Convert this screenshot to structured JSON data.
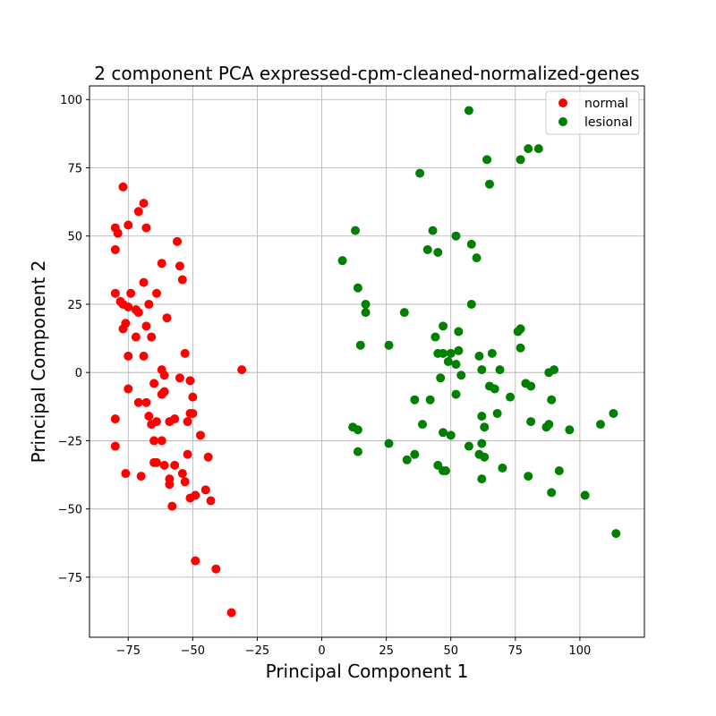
{
  "chart_data": {
    "type": "scatter",
    "title": "2 component PCA expressed-cpm-cleaned-normalized-genes",
    "xlabel": "Principal Component 1",
    "ylabel": "Principal Component 2",
    "xlim": [
      -90,
      125
    ],
    "ylim": [
      -97,
      105
    ],
    "xticks": [
      -75,
      -50,
      -25,
      0,
      25,
      50,
      75,
      100
    ],
    "yticks": [
      -75,
      -50,
      -25,
      0,
      25,
      50,
      75,
      100
    ],
    "xtick_labels": [
      "−75",
      "−50",
      "−25",
      "0",
      "25",
      "50",
      "75",
      "100"
    ],
    "ytick_labels": [
      "−75",
      "−50",
      "−25",
      "0",
      "25",
      "50",
      "75",
      "100"
    ],
    "grid": true,
    "legend_position": "top-right",
    "series": [
      {
        "name": "normal",
        "color": "#ff0000",
        "points": [
          [
            -77,
            68
          ],
          [
            -69,
            62
          ],
          [
            -80,
            53
          ],
          [
            -79,
            51
          ],
          [
            -75,
            54
          ],
          [
            -71,
            59
          ],
          [
            -68,
            53
          ],
          [
            -80,
            45
          ],
          [
            -56,
            48
          ],
          [
            -62,
            40
          ],
          [
            -55,
            39
          ],
          [
            -69,
            33
          ],
          [
            -74,
            29
          ],
          [
            -64,
            29
          ],
          [
            -80,
            29
          ],
          [
            -54,
            34
          ],
          [
            -78,
            26
          ],
          [
            -77,
            25
          ],
          [
            -67,
            25
          ],
          [
            -75,
            24
          ],
          [
            -72,
            23
          ],
          [
            -71,
            22
          ],
          [
            -60,
            20
          ],
          [
            -68,
            17
          ],
          [
            -76,
            18
          ],
          [
            -77,
            16
          ],
          [
            -72,
            13
          ],
          [
            -66,
            13
          ],
          [
            -75,
            6
          ],
          [
            -69,
            6
          ],
          [
            -53,
            7
          ],
          [
            -31,
            1
          ],
          [
            -62,
            1
          ],
          [
            -61,
            -1
          ],
          [
            -55,
            -2
          ],
          [
            -51,
            -3
          ],
          [
            -65,
            -4
          ],
          [
            -75,
            -6
          ],
          [
            -61,
            -7
          ],
          [
            -62,
            -8
          ],
          [
            -50,
            -9
          ],
          [
            -71,
            -11
          ],
          [
            -68,
            -11
          ],
          [
            -80,
            -17
          ],
          [
            -67,
            -16
          ],
          [
            -64,
            -18
          ],
          [
            -59,
            -18
          ],
          [
            -57,
            -17
          ],
          [
            -52,
            -18
          ],
          [
            -51,
            -15
          ],
          [
            -50,
            -15
          ],
          [
            -66,
            -19
          ],
          [
            -47,
            -23
          ],
          [
            -80,
            -27
          ],
          [
            -65,
            -25
          ],
          [
            -62,
            -25
          ],
          [
            -52,
            -30
          ],
          [
            -44,
            -31
          ],
          [
            -65,
            -33
          ],
          [
            -64,
            -33
          ],
          [
            -61,
            -34
          ],
          [
            -57,
            -34
          ],
          [
            -76,
            -37
          ],
          [
            -70,
            -38
          ],
          [
            -54,
            -37
          ],
          [
            -59,
            -39
          ],
          [
            -59,
            -41
          ],
          [
            -53,
            -40
          ],
          [
            -45,
            -43
          ],
          [
            -51,
            -46
          ],
          [
            -49,
            -45
          ],
          [
            -43,
            -47
          ],
          [
            -58,
            -49
          ],
          [
            -49,
            -69
          ],
          [
            -41,
            -72
          ],
          [
            -35,
            -88
          ]
        ]
      },
      {
        "name": "lesional",
        "color": "#008000",
        "points": [
          [
            57,
            96
          ],
          [
            64,
            78
          ],
          [
            77,
            78
          ],
          [
            80,
            82
          ],
          [
            84,
            82
          ],
          [
            38,
            73
          ],
          [
            65,
            69
          ],
          [
            13,
            52
          ],
          [
            43,
            52
          ],
          [
            52,
            50
          ],
          [
            58,
            47
          ],
          [
            41,
            45
          ],
          [
            45,
            44
          ],
          [
            60,
            42
          ],
          [
            8,
            41
          ],
          [
            14,
            31
          ],
          [
            17,
            25
          ],
          [
            17,
            22
          ],
          [
            58,
            25
          ],
          [
            32,
            22
          ],
          [
            47,
            17
          ],
          [
            53,
            15
          ],
          [
            77,
            16
          ],
          [
            76,
            15
          ],
          [
            15,
            10
          ],
          [
            26,
            10
          ],
          [
            44,
            13
          ],
          [
            77,
            9
          ],
          [
            47,
            7
          ],
          [
            45,
            7
          ],
          [
            53,
            8
          ],
          [
            50,
            7
          ],
          [
            49,
            4
          ],
          [
            52,
            3
          ],
          [
            66,
            7
          ],
          [
            62,
            1
          ],
          [
            69,
            1
          ],
          [
            61,
            6
          ],
          [
            88,
            0
          ],
          [
            90,
            1
          ],
          [
            54,
            -1
          ],
          [
            46,
            -2
          ],
          [
            65,
            -5
          ],
          [
            67,
            -6
          ],
          [
            79,
            -4
          ],
          [
            81,
            -5
          ],
          [
            52,
            -8
          ],
          [
            73,
            -9
          ],
          [
            42,
            -10
          ],
          [
            36,
            -10
          ],
          [
            89,
            -10
          ],
          [
            68,
            -15
          ],
          [
            62,
            -16
          ],
          [
            39,
            -19
          ],
          [
            81,
            -18
          ],
          [
            88,
            -19
          ],
          [
            87,
            -20
          ],
          [
            12,
            -20
          ],
          [
            14,
            -21
          ],
          [
            63,
            -20
          ],
          [
            96,
            -21
          ],
          [
            108,
            -19
          ],
          [
            113,
            -15
          ],
          [
            47,
            -22
          ],
          [
            50,
            -23
          ],
          [
            26,
            -26
          ],
          [
            57,
            -27
          ],
          [
            62,
            -26
          ],
          [
            14,
            -29
          ],
          [
            36,
            -30
          ],
          [
            33,
            -32
          ],
          [
            61,
            -30
          ],
          [
            63,
            -31
          ],
          [
            45,
            -34
          ],
          [
            70,
            -35
          ],
          [
            47,
            -36
          ],
          [
            48,
            -36
          ],
          [
            92,
            -36
          ],
          [
            62,
            -39
          ],
          [
            80,
            -38
          ],
          [
            89,
            -44
          ],
          [
            102,
            -45
          ],
          [
            114,
            -59
          ]
        ]
      }
    ]
  }
}
